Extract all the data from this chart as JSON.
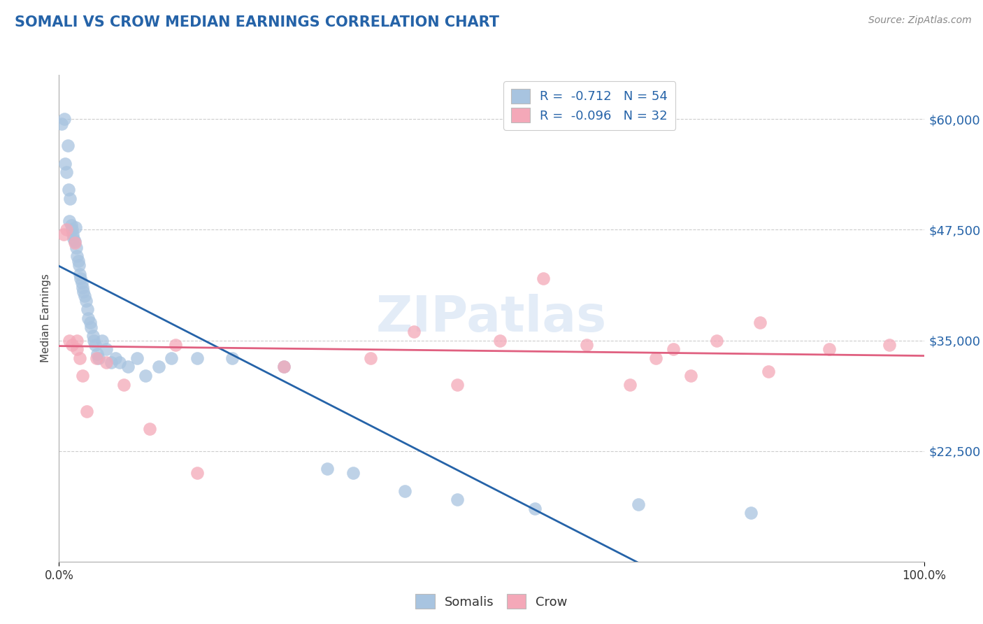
{
  "title": "SOMALI VS CROW MEDIAN EARNINGS CORRELATION CHART",
  "source": "Source: ZipAtlas.com",
  "ylabel": "Median Earnings",
  "yticks": [
    22500,
    35000,
    47500,
    60000
  ],
  "ytick_labels": [
    "$22,500",
    "$35,000",
    "$47,500",
    "$60,000"
  ],
  "xlim": [
    0.0,
    1.0
  ],
  "ylim": [
    10000,
    65000
  ],
  "somali_color": "#a8c4e0",
  "crow_color": "#f4a8b8",
  "somali_line_color": "#2563a8",
  "crow_line_color": "#e06080",
  "somali_R": -0.712,
  "somali_N": 54,
  "crow_R": -0.096,
  "crow_N": 32,
  "watermark": "ZIPatlas",
  "legend_label_somali": "Somalis",
  "legend_label_crow": "Crow",
  "somali_x": [
    0.003,
    0.006,
    0.007,
    0.009,
    0.01,
    0.011,
    0.012,
    0.013,
    0.014,
    0.015,
    0.016,
    0.017,
    0.018,
    0.019,
    0.02,
    0.021,
    0.022,
    0.023,
    0.024,
    0.025,
    0.026,
    0.027,
    0.028,
    0.03,
    0.031,
    0.033,
    0.034,
    0.036,
    0.037,
    0.039,
    0.04,
    0.042,
    0.044,
    0.046,
    0.05,
    0.055,
    0.06,
    0.065,
    0.07,
    0.08,
    0.09,
    0.1,
    0.115,
    0.13,
    0.16,
    0.2,
    0.26,
    0.31,
    0.34,
    0.4,
    0.46,
    0.55,
    0.67,
    0.8
  ],
  "somali_y": [
    59500,
    60000,
    55000,
    54000,
    57000,
    52000,
    48500,
    51000,
    48000,
    47500,
    47000,
    46500,
    46200,
    47800,
    45500,
    44500,
    44000,
    43500,
    42500,
    42000,
    41500,
    41000,
    40500,
    40000,
    39500,
    38500,
    37500,
    37000,
    36500,
    35500,
    35000,
    34500,
    33500,
    33000,
    35000,
    34000,
    32500,
    33000,
    32500,
    32000,
    33000,
    31000,
    32000,
    33000,
    33000,
    33000,
    32000,
    20500,
    20000,
    18000,
    17000,
    16000,
    16500,
    15500
  ],
  "crow_x": [
    0.005,
    0.009,
    0.012,
    0.015,
    0.018,
    0.021,
    0.021,
    0.024,
    0.027,
    0.032,
    0.043,
    0.055,
    0.075,
    0.105,
    0.135,
    0.16,
    0.26,
    0.36,
    0.41,
    0.46,
    0.51,
    0.56,
    0.61,
    0.66,
    0.69,
    0.71,
    0.73,
    0.76,
    0.81,
    0.89,
    0.96,
    0.82
  ],
  "crow_y": [
    47000,
    47500,
    35000,
    34500,
    46000,
    35000,
    34000,
    33000,
    31000,
    27000,
    33000,
    32500,
    30000,
    25000,
    34500,
    20000,
    32000,
    33000,
    36000,
    30000,
    35000,
    42000,
    34500,
    30000,
    33000,
    34000,
    31000,
    35000,
    37000,
    34000,
    34500,
    31500
  ]
}
